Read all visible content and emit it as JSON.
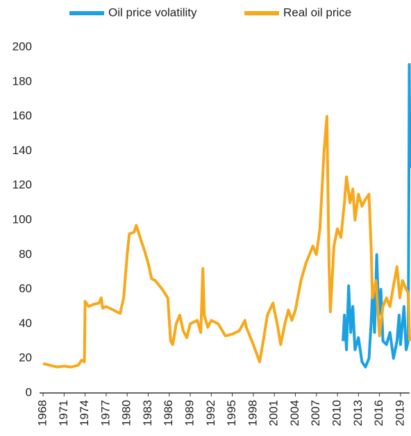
{
  "chart_data": {
    "type": "line",
    "xlim": [
      1967.5,
      2020.3
    ],
    "xticks": [
      1968,
      1971,
      1974,
      1977,
      1980,
      1983,
      1986,
      1989,
      1992,
      1995,
      1998,
      2001,
      2004,
      2007,
      2010,
      2013,
      2016,
      2019
    ],
    "ylim": [
      0,
      200
    ],
    "yticks": [
      0,
      20,
      40,
      60,
      80,
      100,
      120,
      140,
      160,
      180,
      200
    ],
    "series": [
      {
        "name": "Oil price volatility",
        "color": "#1ba1e2",
        "x": [
          2010.8,
          2011,
          2011.3,
          2011.6,
          2011.9,
          2012.2,
          2012.5,
          2013,
          2013.5,
          2014,
          2014.5,
          2014.8,
          2015,
          2015.3,
          2015.6,
          2015.9,
          2016.2,
          2016.5,
          2017,
          2017.5,
          2018,
          2018.5,
          2018.8,
          2019,
          2019.5,
          2019.8,
          2020.1,
          2020.2,
          2020.25,
          2020.35
        ],
        "values": [
          30,
          45,
          25,
          62,
          35,
          50,
          25,
          32,
          18,
          15,
          20,
          40,
          58,
          35,
          80,
          45,
          60,
          30,
          28,
          35,
          20,
          30,
          45,
          28,
          50,
          25,
          30,
          125,
          190,
          130
        ]
      },
      {
        "name": "Real oil price",
        "color": "#f7a81b",
        "x": [
          1968,
          1969,
          1970,
          1971,
          1972,
          1973,
          1973.5,
          1973.9,
          1974,
          1974.5,
          1975,
          1976,
          1976.3,
          1976.5,
          1977,
          1978,
          1979,
          1979.5,
          1980,
          1980.3,
          1981,
          1981.3,
          1982,
          1982.5,
          1983,
          1983.5,
          1984,
          1985,
          1985.8,
          1986.2,
          1986.5,
          1987,
          1987.5,
          1988,
          1988.5,
          1989,
          1990,
          1990.5,
          1990.8,
          1991,
          1991.5,
          1992,
          1993,
          1994,
          1995,
          1996,
          1996.8,
          1997,
          1998,
          1998.9,
          1999.5,
          2000,
          2000.8,
          2001.5,
          2001.9,
          2002.5,
          2003,
          2003.5,
          2004,
          2004.8,
          2005.5,
          2006.5,
          2007,
          2007.5,
          2008.1,
          2008.5,
          2008.8,
          2009,
          2009.5,
          2010,
          2010.5,
          2011,
          2011.3,
          2011.8,
          2012.2,
          2012.5,
          2013,
          2013.5,
          2014,
          2014.5,
          2014.8,
          2015,
          2015.5,
          2016,
          2016.5,
          2017,
          2017.5,
          2018,
          2018.5,
          2018.9,
          2019.3,
          2019.8,
          2020.1,
          2020.3
        ],
        "values": [
          17,
          16,
          15,
          15.5,
          15,
          16,
          19,
          18,
          53,
          50,
          51,
          52,
          55,
          49,
          50,
          48,
          46,
          55,
          80,
          92,
          93,
          97,
          88,
          82,
          75,
          66,
          65,
          60,
          55,
          30,
          28,
          40,
          45,
          36,
          32,
          40,
          42,
          35,
          72,
          45,
          38,
          42,
          40,
          33,
          34,
          36,
          42,
          38,
          28,
          18,
          32,
          45,
          52,
          38,
          28,
          40,
          48,
          42,
          48,
          65,
          75,
          85,
          80,
          95,
          140,
          160,
          75,
          47,
          85,
          95,
          90,
          110,
          125,
          110,
          118,
          100,
          115,
          108,
          112,
          115,
          85,
          55,
          65,
          33,
          50,
          55,
          50,
          62,
          73,
          55,
          65,
          60,
          58,
          30
        ]
      }
    ]
  }
}
